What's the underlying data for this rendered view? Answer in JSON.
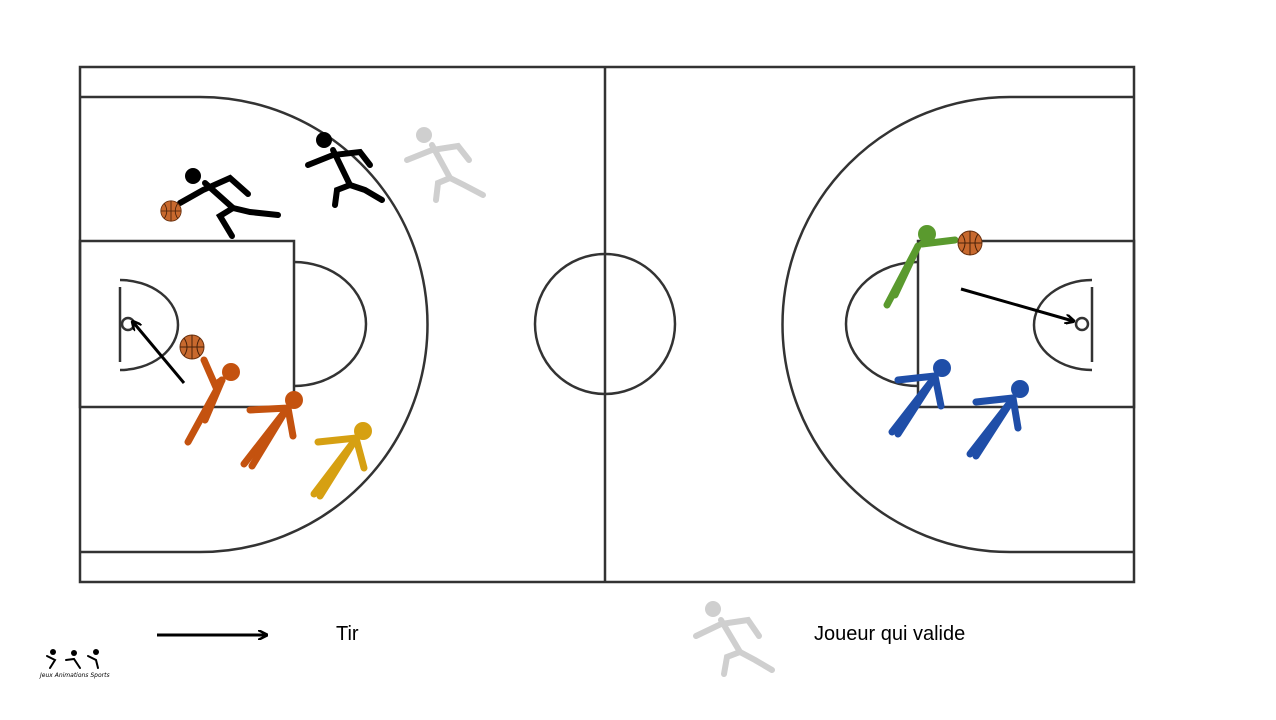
{
  "legend": {
    "shot_label": "Tir",
    "validator_label": "Joueur qui valide"
  },
  "logo": {
    "text": "Jeux Animations Sports"
  },
  "colors": {
    "court_line": "#333333",
    "defender_black": "#000000",
    "validator_grey": "#cfcfcf",
    "orange_team": "#c4520f",
    "yellow_player": "#d6a012",
    "green_player": "#5a9a2e",
    "blue_team": "#1f4ea8",
    "ball": "#c8692e"
  },
  "icons": [
    "basketball-icon",
    "runner-icon",
    "shot-arrow-icon"
  ]
}
